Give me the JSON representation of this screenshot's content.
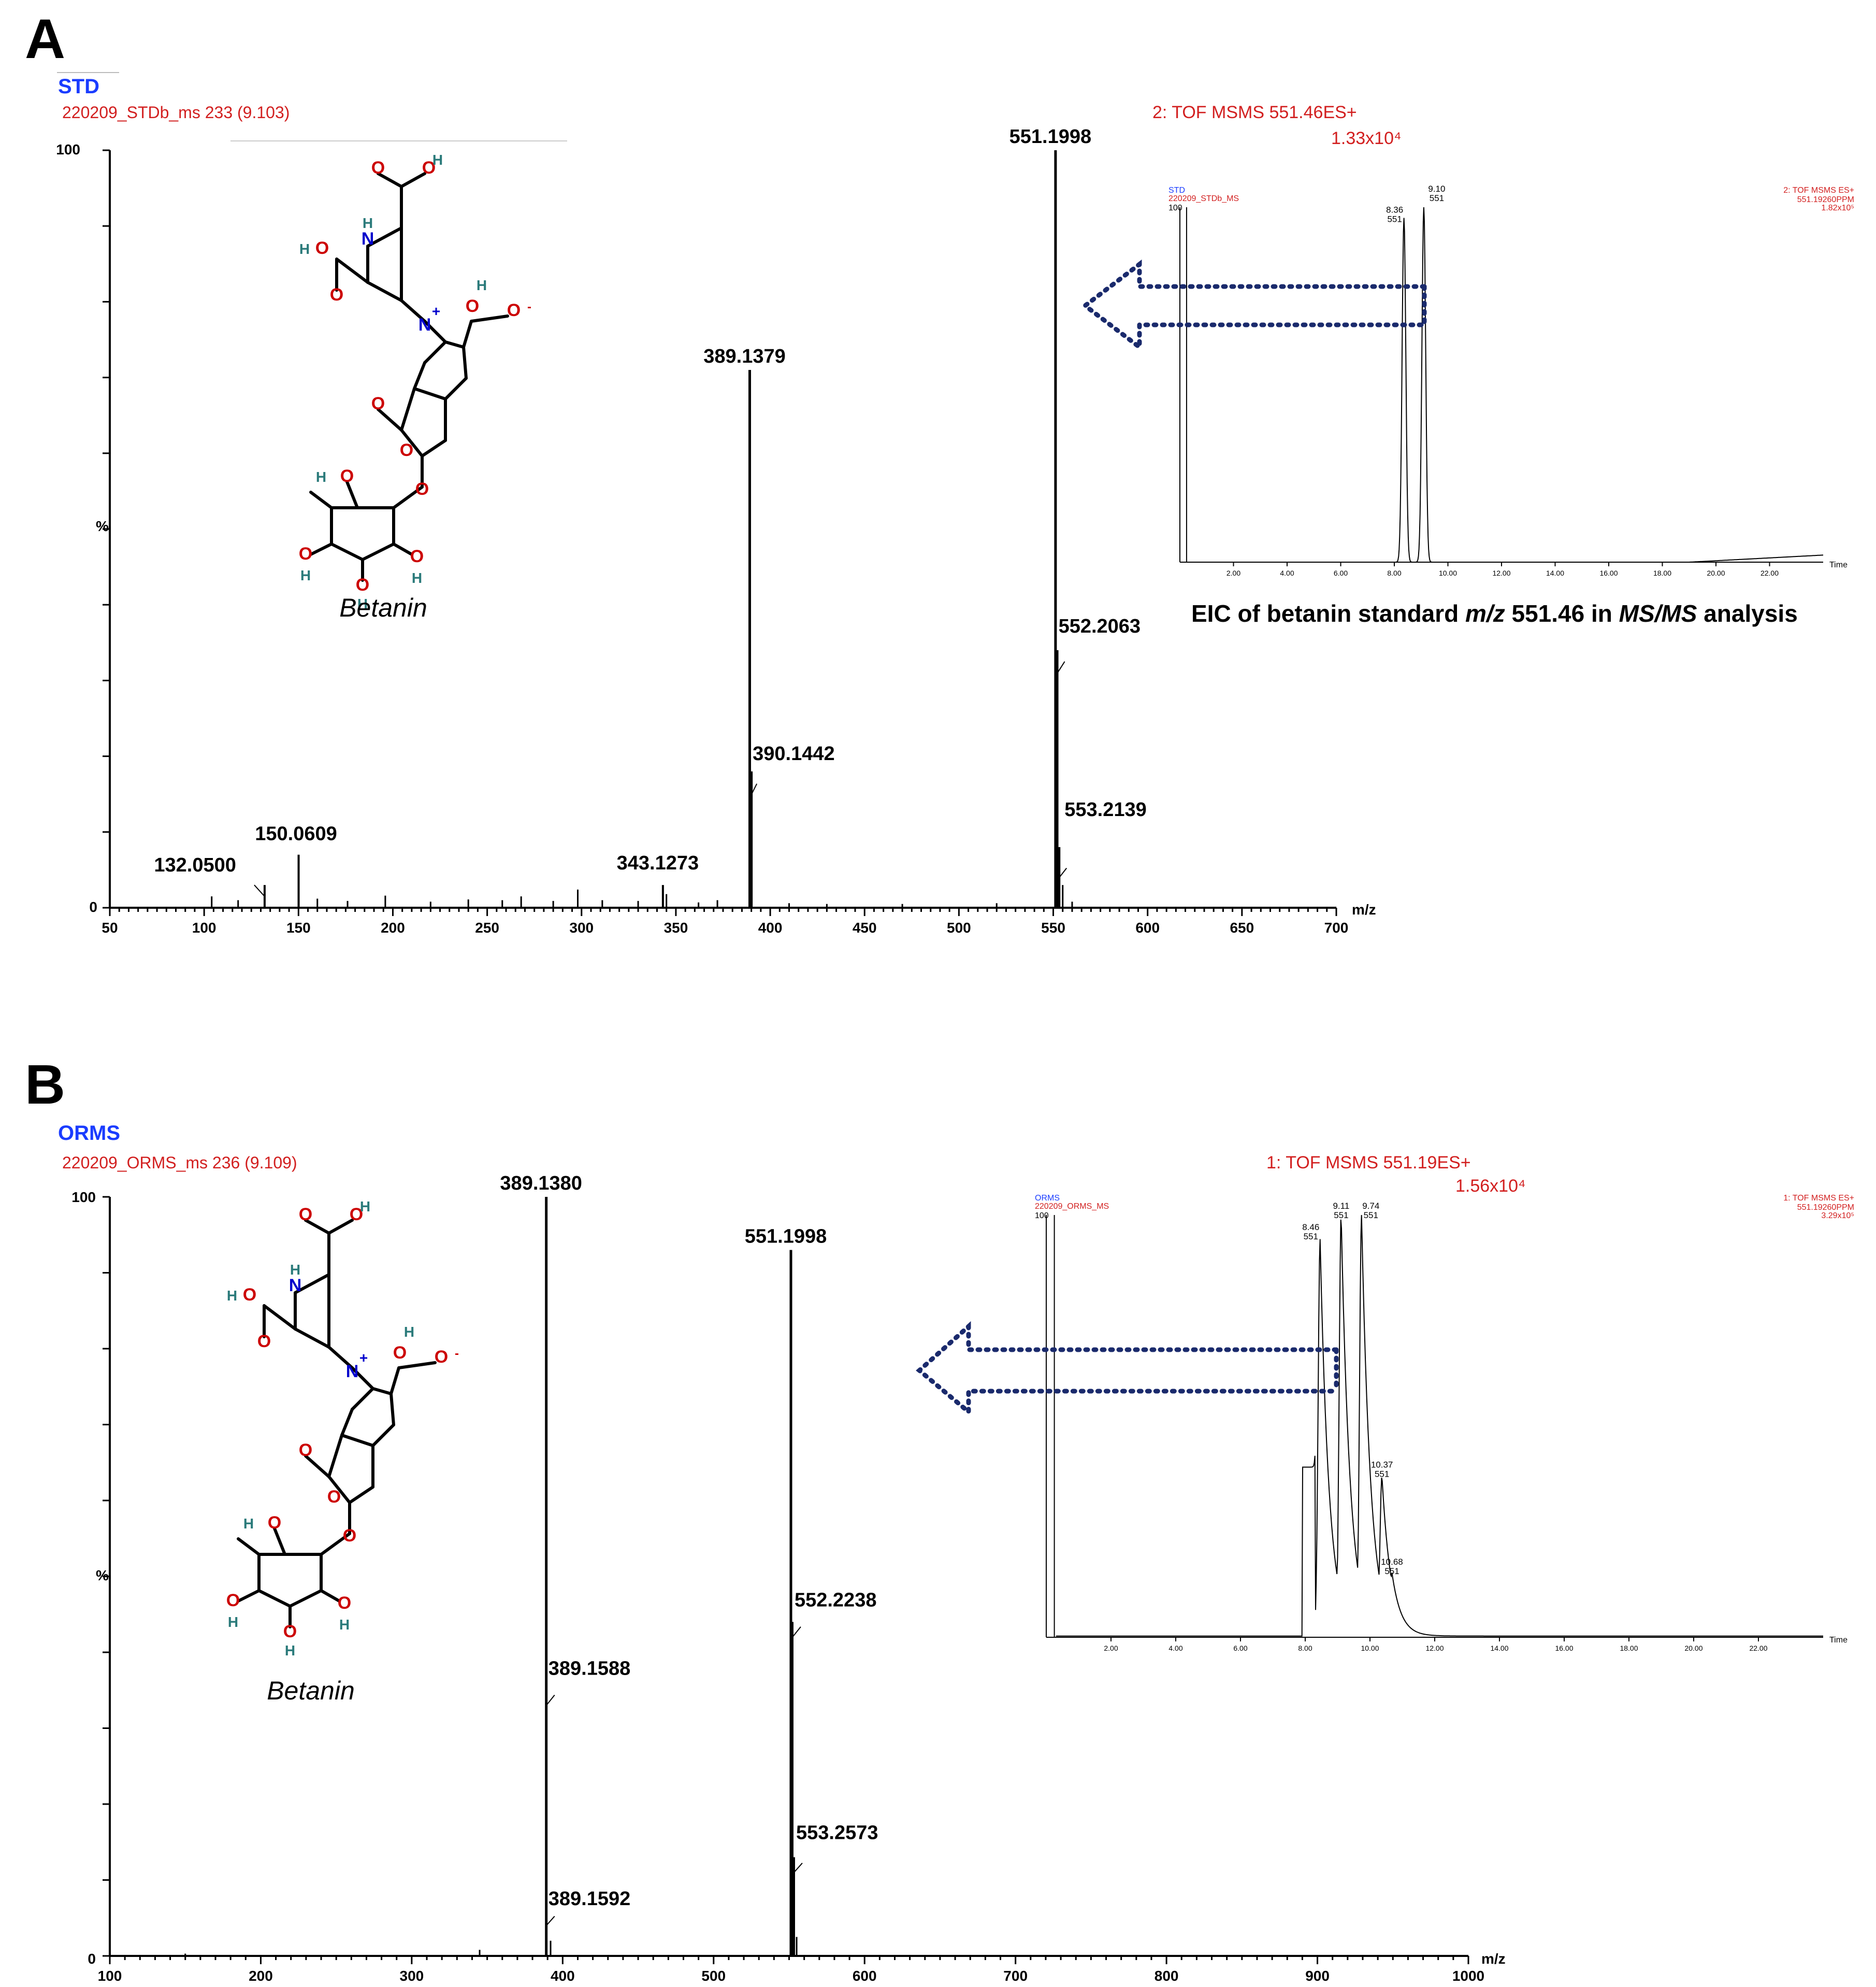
{
  "colors": {
    "accent_red": "#d21f1f",
    "accent_blue": "#1a3cff",
    "arrow": "#1a2a6c",
    "bond_red": "#cc0000",
    "bond_blue": "#0000cc",
    "hydrogen": "#2a7a7a"
  },
  "panels": [
    {
      "letter": "A",
      "sample": "STD",
      "scan": "220209_STDb_ms 233 (9.103)",
      "function": "2: TOF MSMS 551.46ES+",
      "intensity": "1.33x10⁴",
      "y_top_label": "100",
      "y_bottom_label": "0",
      "y_axis_label": "%",
      "x_axis_label": "m/z",
      "compound": "Betanin",
      "eic_caption_parts": [
        "EIC of betanin standard ",
        "m/z",
        " 551.46 in ",
        "MS/MS",
        " analysis"
      ],
      "chart_data": {
        "type": "bar",
        "title": "220209_STDb_ms 233 (9.103)",
        "xlabel": "m/z",
        "ylabel": "%",
        "xlim": [
          50,
          700
        ],
        "ylim": [
          0,
          100
        ],
        "xticks": [
          "50",
          "100",
          "150",
          "200",
          "250",
          "300",
          "350",
          "400",
          "450",
          "500",
          "550",
          "600",
          "650",
          "700"
        ],
        "peaks": [
          {
            "mz": 551.1998,
            "y": 100,
            "label": "551.1998"
          },
          {
            "mz": 389.1379,
            "y": 71,
            "label": "389.1379"
          },
          {
            "mz": 552.2063,
            "y": 34,
            "label": "552.2063"
          },
          {
            "mz": 390.1442,
            "y": 18,
            "label": "390.1442"
          },
          {
            "mz": 553.2139,
            "y": 8,
            "label": "553.2139"
          },
          {
            "mz": 150.0609,
            "y": 7,
            "label": "150.0609"
          },
          {
            "mz": 343.1273,
            "y": 3,
            "label": "343.1273"
          },
          {
            "mz": 132.05,
            "y": 3,
            "label": "132.0500"
          }
        ],
        "noise_peaks": [
          {
            "mz": 104,
            "y": 1.5
          },
          {
            "mz": 118,
            "y": 1
          },
          {
            "mz": 160,
            "y": 1.2
          },
          {
            "mz": 176,
            "y": 0.9
          },
          {
            "mz": 196,
            "y": 1.6
          },
          {
            "mz": 220,
            "y": 0.8
          },
          {
            "mz": 240,
            "y": 1.1
          },
          {
            "mz": 258,
            "y": 1
          },
          {
            "mz": 268,
            "y": 1.5
          },
          {
            "mz": 285,
            "y": 0.9
          },
          {
            "mz": 298,
            "y": 2.4
          },
          {
            "mz": 311,
            "y": 1
          },
          {
            "mz": 330,
            "y": 0.9
          },
          {
            "mz": 345,
            "y": 1.8
          },
          {
            "mz": 362,
            "y": 0.7
          },
          {
            "mz": 372,
            "y": 1
          },
          {
            "mz": 410,
            "y": 0.6
          },
          {
            "mz": 430,
            "y": 0.5
          },
          {
            "mz": 470,
            "y": 0.5
          },
          {
            "mz": 520,
            "y": 0.6
          },
          {
            "mz": 555,
            "y": 3
          },
          {
            "mz": 560,
            "y": 0.8
          }
        ]
      },
      "eic_inset": {
        "sample": "STD",
        "file": "220209_STDb_MS",
        "y_top": "100",
        "fn_line1": "2: TOF MSMS ES+",
        "fn_line2": "551.19260PPM",
        "fn_line3": "1.82x10⁵",
        "x_axis_label": "Time",
        "chart_data": {
          "type": "line",
          "xlabel": "Time",
          "xlim": [
            0,
            24
          ],
          "ylim": [
            0,
            100
          ],
          "xticks": [
            "2.00",
            "4.00",
            "6.00",
            "8.00",
            "10.00",
            "12.00",
            "14.00",
            "16.00",
            "18.00",
            "20.00",
            "22.00"
          ],
          "peaks": [
            {
              "rt": 8.36,
              "y": 97,
              "label_rt": "8.36",
              "label_mz": "551"
            },
            {
              "rt": 9.1,
              "y": 100,
              "label_rt": "9.10",
              "label_mz": "551"
            }
          ]
        }
      }
    },
    {
      "letter": "B",
      "sample": "ORMS",
      "scan": "220209_ORMS_ms 236 (9.109)",
      "function": "1: TOF MSMS 551.19ES+",
      "intensity": "1.56x10⁴",
      "y_top_label": "100",
      "y_bottom_label": "0",
      "y_axis_label": "%",
      "x_axis_label": "m/z",
      "compound": "Betanin",
      "chart_data": {
        "type": "bar",
        "title": "220209_ORMS_ms 236 (9.109)",
        "xlabel": "m/z",
        "ylabel": "%",
        "xlim": [
          100,
          1000
        ],
        "ylim": [
          0,
          100
        ],
        "xticks": [
          "100",
          "200",
          "300",
          "400",
          "500",
          "600",
          "700",
          "800",
          "900",
          "1000"
        ],
        "peaks": [
          {
            "mz": 389.138,
            "y": 100,
            "label": "389.1380"
          },
          {
            "mz": 551.1998,
            "y": 93,
            "label": "551.1998"
          },
          {
            "mz": 552.2238,
            "y": 44,
            "label": "552.2238"
          },
          {
            "mz": 389.1588,
            "y": 35,
            "label": "389.1588"
          },
          {
            "mz": 553.2573,
            "y": 13,
            "label": "553.2573"
          },
          {
            "mz": 389.1592,
            "y": 5,
            "label": "389.1592"
          }
        ],
        "noise_peaks": [
          {
            "mz": 150,
            "y": 0.3
          },
          {
            "mz": 345,
            "y": 0.8
          },
          {
            "mz": 392,
            "y": 2
          },
          {
            "mz": 555,
            "y": 2.5
          }
        ]
      },
      "eic_inset": {
        "sample": "ORMS",
        "file": "220209_ORMS_MS",
        "y_top": "100",
        "fn_line1": "1: TOF MSMS ES+",
        "fn_line2": "551.19260PPM",
        "fn_line3": "3.29x10⁵",
        "x_axis_label": "Time",
        "chart_data": {
          "type": "line",
          "xlabel": "Time",
          "xlim": [
            0,
            24
          ],
          "ylim": [
            0,
            100
          ],
          "xticks": [
            "2.00",
            "4.00",
            "6.00",
            "8.00",
            "10.00",
            "12.00",
            "14.00",
            "16.00",
            "18.00",
            "20.00",
            "22.00"
          ],
          "peaks": [
            {
              "rt": 8.46,
              "y": 94,
              "label_rt": "8.46",
              "label_mz": "551"
            },
            {
              "rt": 9.11,
              "y": 100,
              "label_rt": "9.11",
              "label_mz": "551"
            },
            {
              "rt": 9.74,
              "y": 100,
              "label_rt": "9.74",
              "label_mz": "551"
            },
            {
              "rt": 10.37,
              "y": 38,
              "label_rt": "10.37",
              "label_mz": "551"
            },
            {
              "rt": 10.68,
              "y": 15,
              "label_rt": "10.68",
              "label_mz": "551"
            }
          ]
        }
      }
    }
  ]
}
